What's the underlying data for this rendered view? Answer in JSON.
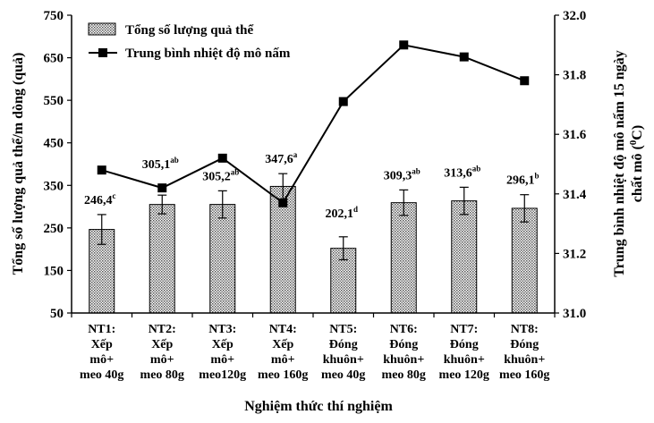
{
  "chart_data": {
    "type": "bar",
    "categories": [
      [
        "NT1:",
        "Xếp",
        "mô+",
        "meo 40g"
      ],
      [
        "NT2:",
        "Xếp",
        "mô+",
        "meo 80g"
      ],
      [
        "NT3:",
        "Xếp",
        "mô+",
        "meo120g"
      ],
      [
        "NT4:",
        "Xếp",
        "mô+",
        "meo 160g"
      ],
      [
        "NT5:",
        "Đóng",
        "khuôn+",
        "meo 40g"
      ],
      [
        "NT6:",
        "Đóng",
        "khuôn+",
        "meo 80g"
      ],
      [
        "NT7:",
        "Đóng",
        "khuôn+",
        "meo 120g"
      ],
      [
        "NT8:",
        "Đóng",
        "khuôn+",
        "meo 160g"
      ]
    ],
    "series": [
      {
        "name": "Tổng số lượng quả thể",
        "type": "bar",
        "axis": "left",
        "values": [
          246.4,
          305.1,
          305.2,
          347.6,
          202.1,
          309.3,
          313.6,
          296.1
        ],
        "errors": [
          35,
          22,
          32,
          30,
          27,
          30,
          32,
          32
        ],
        "labels": [
          "246,4",
          "305,1",
          "305,2",
          "347,6",
          "202,1",
          "309,3",
          "313,6",
          "296,1"
        ],
        "superscripts": [
          "c",
          "ab",
          "ab",
          "a",
          "d",
          "ab",
          "ab",
          "b"
        ]
      },
      {
        "name": "Trung bình nhiệt độ mô nấm",
        "type": "line",
        "axis": "right",
        "values": [
          31.48,
          31.42,
          31.52,
          31.37,
          31.71,
          31.9,
          31.86,
          31.78
        ]
      }
    ],
    "y_left": {
      "label": "Tổng số lượng quả thể/m dòng  (quả)",
      "range": [
        50,
        750
      ],
      "ticks": [
        50,
        150,
        250,
        350,
        450,
        550,
        650,
        750
      ]
    },
    "y_right": {
      "label_line1": "Trung bình nhiệt độ mô nấm 15 ngày",
      "label_line2_pre": "chất mô (",
      "label_line2_sup": "0",
      "label_line2_post": "C)",
      "range": [
        31.0,
        32.0
      ],
      "ticks": [
        "31.0",
        "31.2",
        "31.4",
        "31.6",
        "31.8",
        "32.0"
      ]
    },
    "xlabel": "Nghiệm thức thí nghiệm",
    "legend_position": "top-left",
    "grid": false
  }
}
